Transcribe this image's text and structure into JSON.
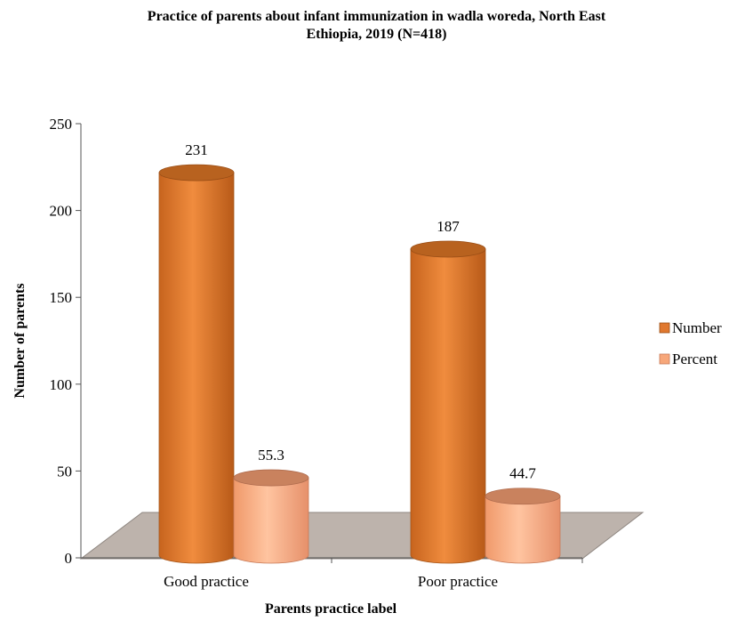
{
  "chart_data": {
    "type": "bar",
    "title_lines": [
      "Practice of parents about infant immunization in wadla woreda, North East",
      "Ethiopia, 2019  (N=418)"
    ],
    "xlabel": "Parents practice label",
    "ylabel": "Number of parents",
    "ylim": [
      0,
      250
    ],
    "yticks": [
      0,
      50,
      100,
      150,
      200,
      250
    ],
    "categories": [
      "Good practice",
      "Poor practice"
    ],
    "series": [
      {
        "name": "Number",
        "values": [
          231,
          187
        ],
        "labels": [
          "231",
          "187"
        ],
        "color": "#E0782F",
        "top_color": "#B8621F"
      },
      {
        "name": "Percent",
        "values": [
          55.3,
          44.7
        ],
        "labels": [
          "55.3",
          "44.7"
        ],
        "color": "#F7A77A",
        "top_color": "#C9825E"
      }
    ],
    "legend_position": "right",
    "floor_color": "#BDB3AC",
    "style": "3d-cylinder"
  }
}
